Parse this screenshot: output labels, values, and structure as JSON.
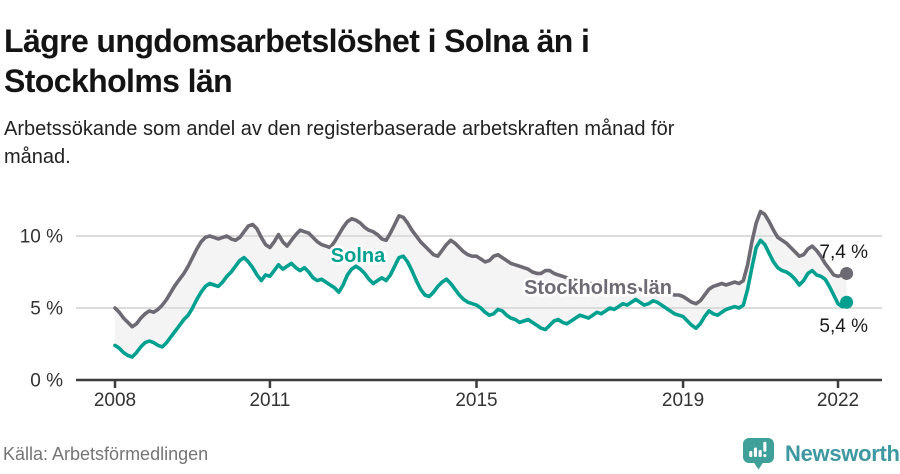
{
  "header": {
    "title_lines": [
      "Lägre ungdomsarbetslöshet i Solna än i",
      "Stockholms län"
    ],
    "subtitle": "Arbetssökande som andel av den registerbaserade arbetskraften månad för månad."
  },
  "footer": {
    "source": "Källa: Arbetsförmedlingen",
    "brand": "Newsworthy",
    "brand_color": "#3e98a1",
    "brand_icon_color": "#3fa099"
  },
  "chart_data": {
    "type": "line",
    "title": "Lägre ungdomsarbetslöshet i Solna än i Stockholms län",
    "subtitle": "Arbetssökande som andel av den registerbaserade arbetskraften månad för månad.",
    "source": "Källa: Arbetsförmedlingen",
    "x_unit": "month",
    "x_start_year": 2008,
    "x_end": "2022-03",
    "x_ticks": [
      2008,
      2011,
      2015,
      2019,
      2022
    ],
    "ylim": [
      0,
      12
    ],
    "y_ticks": [
      {
        "v": 0,
        "label": "0 %"
      },
      {
        "v": 5,
        "label": "5 %"
      },
      {
        "v": 10,
        "label": "10 %"
      }
    ],
    "grid_color": "#dcdcdc",
    "axis_color": "#3c3c3c",
    "band_fill": "#f4f4f4",
    "tick_label_color": "#333333",
    "end_label_color": "#1a1a1a",
    "series": [
      {
        "name": "Stockholms län",
        "color": "#6e6a73",
        "end_label": "7,4 %",
        "values": [
          5.0,
          4.7,
          4.3,
          4.0,
          3.7,
          3.9,
          4.3,
          4.6,
          4.8,
          4.7,
          4.9,
          5.2,
          5.6,
          6.1,
          6.6,
          7.0,
          7.4,
          7.9,
          8.5,
          9.1,
          9.6,
          9.9,
          10.0,
          9.9,
          9.8,
          9.9,
          10.0,
          9.8,
          9.7,
          9.9,
          10.3,
          10.7,
          10.8,
          10.5,
          9.9,
          9.4,
          9.2,
          9.6,
          10.1,
          9.6,
          9.3,
          9.7,
          10.1,
          10.4,
          10.3,
          10.2,
          9.9,
          9.6,
          9.4,
          9.3,
          9.2,
          9.6,
          10.1,
          10.6,
          11.0,
          11.2,
          11.1,
          10.9,
          10.6,
          10.4,
          10.3,
          10.1,
          9.8,
          9.7,
          10.2,
          10.8,
          11.4,
          11.3,
          10.9,
          10.4,
          10.0,
          9.6,
          9.3,
          9.0,
          8.7,
          8.6,
          9.0,
          9.4,
          9.7,
          9.5,
          9.2,
          8.9,
          8.7,
          8.6,
          8.6,
          8.4,
          8.2,
          8.3,
          8.6,
          8.7,
          8.5,
          8.3,
          8.1,
          8.0,
          7.9,
          7.8,
          7.7,
          7.5,
          7.4,
          7.4,
          7.6,
          7.6,
          7.4,
          7.3,
          7.2,
          7.1,
          7.0,
          6.9,
          6.9,
          6.8,
          6.7,
          6.7,
          6.6,
          6.7,
          6.8,
          6.7,
          6.5,
          6.4,
          6.3,
          6.3,
          6.3,
          6.4,
          6.3,
          6.2,
          6.1,
          6.2,
          6.3,
          6.2,
          6.1,
          6.0,
          5.9,
          5.9,
          5.8,
          5.6,
          5.4,
          5.3,
          5.5,
          5.9,
          6.3,
          6.5,
          6.6,
          6.7,
          6.6,
          6.7,
          6.8,
          6.7,
          6.9,
          8.0,
          9.6,
          10.9,
          11.7,
          11.5,
          11.0,
          10.4,
          9.9,
          9.7,
          9.5,
          9.2,
          8.9,
          8.6,
          8.7,
          9.1,
          9.3,
          9.0,
          8.6,
          8.1,
          7.7,
          7.3,
          7.2,
          7.3,
          7.4
        ]
      },
      {
        "name": "Solna",
        "color": "#00a091",
        "end_label": "5,4 %",
        "values": [
          2.4,
          2.2,
          1.9,
          1.7,
          1.6,
          1.9,
          2.3,
          2.6,
          2.7,
          2.6,
          2.4,
          2.3,
          2.6,
          3.0,
          3.4,
          3.8,
          4.2,
          4.5,
          5.0,
          5.6,
          6.1,
          6.5,
          6.7,
          6.6,
          6.5,
          6.8,
          7.2,
          7.5,
          7.9,
          8.3,
          8.5,
          8.2,
          7.8,
          7.3,
          6.9,
          7.3,
          7.2,
          7.6,
          8.0,
          7.7,
          7.9,
          8.1,
          7.8,
          7.6,
          7.8,
          7.5,
          7.1,
          6.9,
          7.0,
          6.8,
          6.6,
          6.4,
          6.1,
          6.6,
          7.3,
          7.7,
          7.9,
          7.7,
          7.4,
          7.0,
          6.7,
          6.9,
          7.1,
          6.9,
          7.3,
          7.9,
          8.5,
          8.6,
          8.2,
          7.6,
          6.9,
          6.3,
          5.9,
          5.8,
          6.1,
          6.5,
          6.8,
          7.0,
          6.7,
          6.3,
          5.9,
          5.6,
          5.4,
          5.3,
          5.2,
          5.0,
          4.7,
          4.5,
          4.6,
          4.9,
          4.8,
          4.5,
          4.3,
          4.2,
          4.0,
          4.1,
          4.2,
          4.0,
          3.8,
          3.6,
          3.5,
          3.8,
          4.1,
          4.2,
          4.0,
          3.9,
          4.1,
          4.3,
          4.5,
          4.4,
          4.3,
          4.5,
          4.7,
          4.6,
          4.8,
          5.0,
          4.9,
          5.1,
          5.3,
          5.2,
          5.4,
          5.6,
          5.4,
          5.2,
          5.3,
          5.5,
          5.4,
          5.2,
          5.0,
          4.8,
          4.6,
          4.5,
          4.4,
          4.1,
          3.8,
          3.6,
          3.9,
          4.4,
          4.8,
          4.6,
          4.5,
          4.7,
          4.9,
          5.0,
          5.1,
          5.0,
          5.2,
          6.3,
          7.8,
          9.2,
          9.7,
          9.4,
          8.8,
          8.2,
          7.8,
          7.6,
          7.5,
          7.3,
          7.0,
          6.6,
          6.9,
          7.4,
          7.6,
          7.3,
          7.2,
          7.0,
          6.5,
          5.9,
          5.3,
          5.1,
          5.4
        ]
      }
    ]
  }
}
